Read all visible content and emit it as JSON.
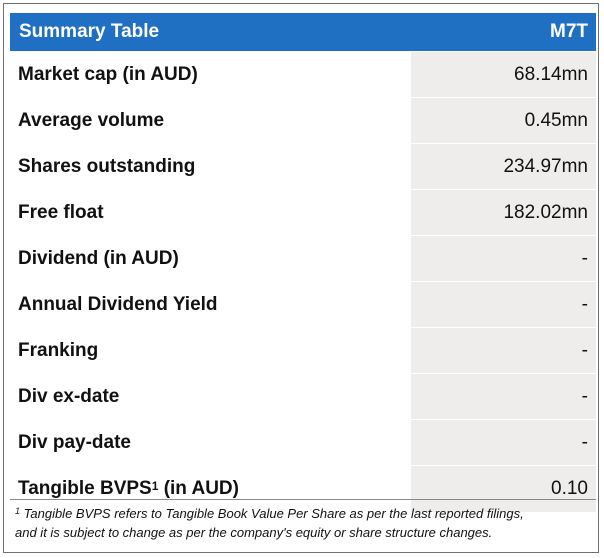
{
  "table": {
    "header_label": "Summary Table",
    "header_value": "M7T",
    "header_color": "#1f6fc3",
    "value_bg_color": "#eeedec",
    "rows": [
      {
        "label": "Market cap (in AUD)",
        "value": "68.14mn"
      },
      {
        "label": "Average volume",
        "value": "0.45mn"
      },
      {
        "label": "Shares outstanding",
        "value": "234.97mn"
      },
      {
        "label": "Free float",
        "value": "182.02mn"
      },
      {
        "label": "Dividend (in AUD)",
        "value": "-"
      },
      {
        "label": "Annual Dividend Yield",
        "value": "-"
      },
      {
        "label": "Franking",
        "value": "-"
      },
      {
        "label": "Div ex-date",
        "value": "-"
      },
      {
        "label": "Div pay-date",
        "value": "-"
      },
      {
        "label_main": "Tangible BVPS",
        "label_sup": "1",
        "label_suffix": " (in AUD)",
        "value": "0.10"
      }
    ]
  },
  "footnote": {
    "marker": "1",
    "line1": " Tangible BVPS refers to Tangible Book Value Per Share as per the last reported filings,",
    "line2": "and it is subject to change as per the company's equity or share structure changes."
  }
}
